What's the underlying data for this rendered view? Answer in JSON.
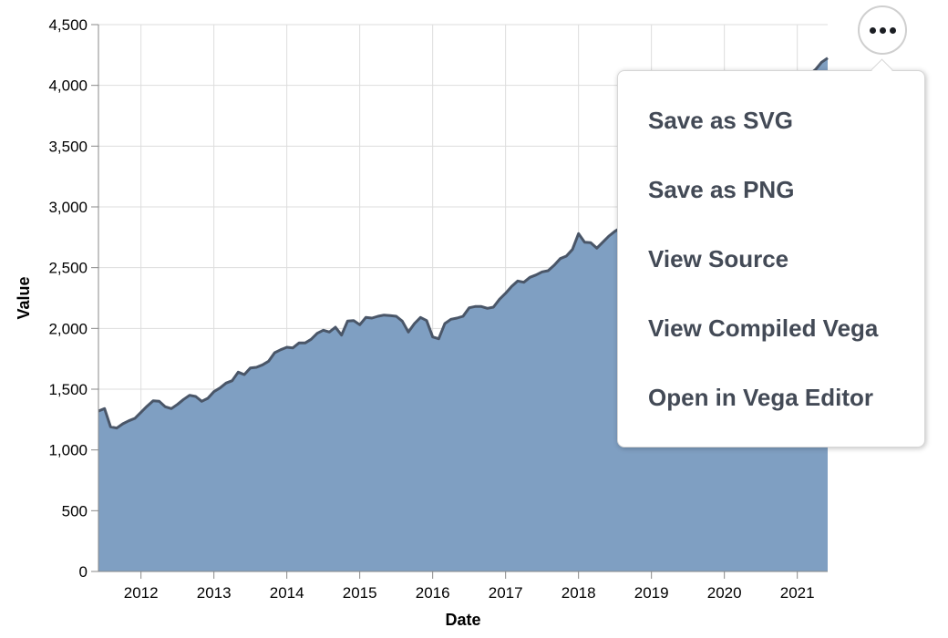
{
  "chart_data": {
    "type": "area",
    "xlabel": "Date",
    "ylabel": "Value",
    "ylim": [
      0,
      4500
    ],
    "x_range": [
      "2011-06",
      "2021-06"
    ],
    "y_ticks": [
      0,
      500,
      1000,
      1500,
      2000,
      2500,
      3000,
      3500,
      4000,
      4500
    ],
    "y_tick_labels": [
      "0",
      "500",
      "1,000",
      "1,500",
      "2,000",
      "2,500",
      "3,000",
      "3,500",
      "4,000",
      "4,500"
    ],
    "x_ticks": [
      "2012",
      "2013",
      "2014",
      "2015",
      "2016",
      "2017",
      "2018",
      "2019",
      "2020",
      "2021"
    ],
    "grid": true,
    "fill_color": "#7f9fc2",
    "line_color": "#4a5668",
    "x": [
      "2011-06",
      "2011-07",
      "2011-08",
      "2011-09",
      "2011-10",
      "2011-11",
      "2011-12",
      "2012-01",
      "2012-02",
      "2012-03",
      "2012-04",
      "2012-05",
      "2012-06",
      "2012-07",
      "2012-08",
      "2012-09",
      "2012-10",
      "2012-11",
      "2012-12",
      "2013-01",
      "2013-02",
      "2013-03",
      "2013-04",
      "2013-05",
      "2013-06",
      "2013-07",
      "2013-08",
      "2013-09",
      "2013-10",
      "2013-11",
      "2013-12",
      "2014-01",
      "2014-02",
      "2014-03",
      "2014-04",
      "2014-05",
      "2014-06",
      "2014-07",
      "2014-08",
      "2014-09",
      "2014-10",
      "2014-11",
      "2014-12",
      "2015-01",
      "2015-02",
      "2015-03",
      "2015-04",
      "2015-05",
      "2015-06",
      "2015-07",
      "2015-08",
      "2015-09",
      "2015-10",
      "2015-11",
      "2015-12",
      "2016-01",
      "2016-02",
      "2016-03",
      "2016-04",
      "2016-05",
      "2016-06",
      "2016-07",
      "2016-08",
      "2016-09",
      "2016-10",
      "2016-11",
      "2016-12",
      "2017-01",
      "2017-02",
      "2017-03",
      "2017-04",
      "2017-05",
      "2017-06",
      "2017-07",
      "2017-08",
      "2017-09",
      "2017-10",
      "2017-11",
      "2017-12",
      "2018-01",
      "2018-02",
      "2018-03",
      "2018-04",
      "2018-05",
      "2018-06",
      "2018-07",
      "2018-08",
      "2021-04",
      "2021-05",
      "2021-06"
    ],
    "values": [
      1320,
      1340,
      1190,
      1180,
      1215,
      1240,
      1260,
      1310,
      1360,
      1405,
      1400,
      1355,
      1340,
      1375,
      1415,
      1450,
      1440,
      1400,
      1425,
      1480,
      1510,
      1550,
      1570,
      1640,
      1620,
      1675,
      1680,
      1700,
      1730,
      1800,
      1825,
      1845,
      1840,
      1880,
      1880,
      1910,
      1960,
      1985,
      1970,
      2010,
      1945,
      2060,
      2065,
      2030,
      2090,
      2085,
      2100,
      2110,
      2105,
      2100,
      2060,
      1970,
      2040,
      2090,
      2065,
      1930,
      1915,
      2040,
      2075,
      2085,
      2100,
      2170,
      2180,
      2180,
      2165,
      2175,
      2240,
      2290,
      2345,
      2390,
      2380,
      2420,
      2440,
      2465,
      2475,
      2520,
      2575,
      2595,
      2650,
      2780,
      2710,
      2705,
      2660,
      2710,
      2760,
      2800,
      2830,
      4130,
      4190,
      4225
    ]
  },
  "actions_button": {
    "icon": "ellipsis-icon"
  },
  "actions_menu": {
    "items": [
      "Save as SVG",
      "Save as PNG",
      "View Source",
      "View Compiled Vega",
      "Open in Vega Editor"
    ]
  }
}
